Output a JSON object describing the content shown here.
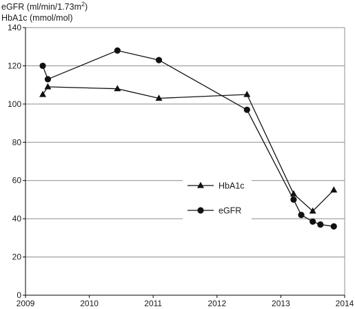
{
  "chart_data": {
    "type": "line",
    "title": "",
    "ylabel_lines": [
      "eGFR (ml/min/1.73m",
      "2",
      ")",
      "HbA1c (mmol/mol)"
    ],
    "xlabel": "",
    "xlim": [
      2009,
      2014
    ],
    "ylim": [
      0,
      140
    ],
    "x_ticks": [
      2009,
      2010,
      2011,
      2012,
      2013,
      2014
    ],
    "y_ticks": [
      0,
      20,
      40,
      60,
      80,
      100,
      120,
      140
    ],
    "grid": "horizontal",
    "legend_position": "center-right",
    "series": [
      {
        "name": "HbA1c",
        "marker": "triangle",
        "color": "#111111",
        "points": [
          [
            2009.27,
            105
          ],
          [
            2009.35,
            109
          ],
          [
            2010.44,
            108
          ],
          [
            2011.09,
            103
          ],
          [
            2012.47,
            105
          ],
          [
            2013.2,
            53
          ],
          [
            2013.5,
            44
          ],
          [
            2013.83,
            55
          ]
        ]
      },
      {
        "name": "eGFR",
        "marker": "circle",
        "color": "#111111",
        "points": [
          [
            2009.27,
            120
          ],
          [
            2009.35,
            113
          ],
          [
            2010.44,
            128
          ],
          [
            2011.09,
            123
          ],
          [
            2012.47,
            97
          ],
          [
            2013.2,
            50
          ],
          [
            2013.32,
            42
          ],
          [
            2013.5,
            38.5
          ],
          [
            2013.62,
            37
          ],
          [
            2013.83,
            36
          ]
        ]
      }
    ]
  }
}
